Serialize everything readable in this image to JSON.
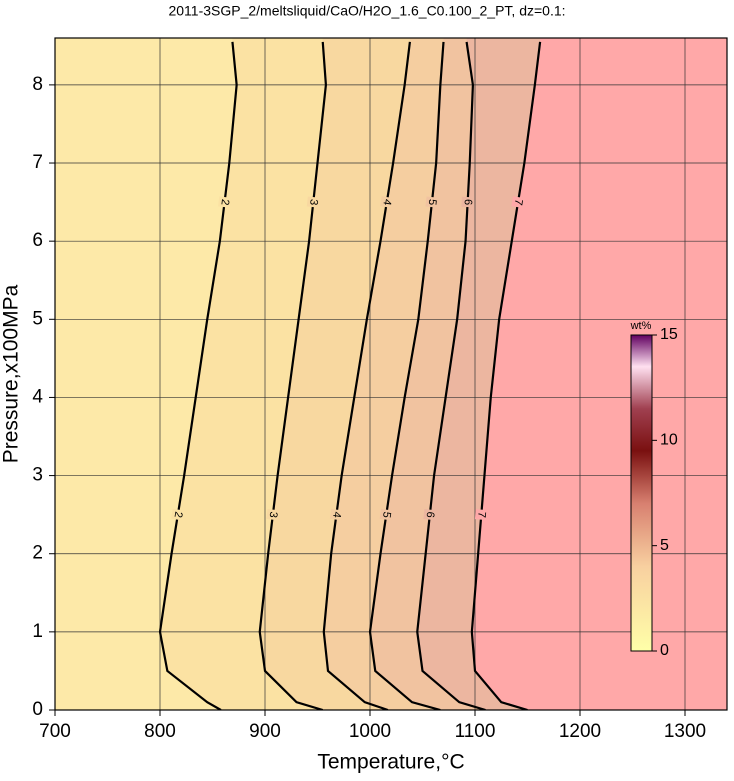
{
  "chart_data": {
    "type": "contour",
    "title": "2011-3SGP_2/meltsliquid/CaO/H2O_1.6_C0.100_2_PT, dz=0.1:",
    "x_label": "Temperature,°C",
    "y_label": "Pressure,x100MPa",
    "xlim": [
      700,
      1340
    ],
    "xticks": [
      700,
      800,
      900,
      1000,
      1100,
      1200,
      1300
    ],
    "ylim": [
      0,
      8.6
    ],
    "yticks": [
      0,
      1,
      2,
      3,
      4,
      5,
      6,
      7,
      8
    ],
    "grid": true,
    "background": "#fde9a8",
    "contours": [
      {
        "level": 2,
        "fill": "#fbe2a3",
        "y": [
          0,
          0.1,
          0.5,
          1,
          2,
          3,
          4,
          5,
          6,
          7,
          8,
          8.55
        ],
        "x": [
          858,
          845,
          807,
          800,
          811,
          823,
          834,
          845,
          857,
          866,
          873,
          869
        ]
      },
      {
        "level": 3,
        "fill": "#f8d8a0",
        "y": [
          0,
          0.1,
          0.5,
          1,
          2,
          3,
          4,
          5,
          6,
          7,
          8,
          8.55
        ],
        "x": [
          955,
          930,
          900,
          895,
          903,
          912,
          922,
          932,
          942,
          950,
          958,
          955
        ]
      },
      {
        "level": 4,
        "fill": "#f5cea0",
        "y": [
          0,
          0.1,
          0.5,
          1,
          2,
          3,
          4,
          5,
          6,
          7,
          8,
          8.55
        ],
        "x": [
          1017,
          995,
          960,
          956,
          963,
          973,
          985,
          997,
          1010,
          1022,
          1033,
          1038
        ]
      },
      {
        "level": 5,
        "fill": "#f1c3a0",
        "y": [
          0,
          0.1,
          0.5,
          1,
          2,
          3,
          4,
          5,
          6,
          7,
          8,
          8.55
        ],
        "x": [
          1067,
          1040,
          1005,
          1000,
          1010,
          1021,
          1033,
          1046,
          1055,
          1063,
          1067,
          1070
        ]
      },
      {
        "level": 6,
        "fill": "#ecb6a0",
        "y": [
          0,
          0.1,
          0.5,
          1,
          2,
          3,
          4,
          5,
          6,
          7,
          8,
          8.55
        ],
        "x": [
          1110,
          1085,
          1050,
          1045,
          1053,
          1061,
          1072,
          1083,
          1091,
          1095,
          1098,
          1092
        ]
      },
      {
        "level": 7,
        "fill": "#ffa8a8",
        "y": [
          0,
          0.1,
          0.5,
          1,
          2,
          3,
          4,
          5,
          6,
          7,
          8,
          8.55
        ],
        "x": [
          1150,
          1125,
          1100,
          1097,
          1103,
          1109,
          1115,
          1123,
          1135,
          1147,
          1157,
          1162
        ]
      }
    ],
    "colorbar": {
      "label": "wt%",
      "lim": [
        0,
        15
      ],
      "ticks": [
        0,
        5,
        10,
        15
      ],
      "colormap": [
        {
          "value": 0,
          "color": "#ffffa8"
        },
        {
          "value": 4,
          "color": "#f8d0a0"
        },
        {
          "value": 7,
          "color": "#d88070"
        },
        {
          "value": 9.5,
          "color": "#7a1010"
        },
        {
          "value": 11.5,
          "color": "#a04050"
        },
        {
          "value": 13.5,
          "color": "#ffe0f0"
        },
        {
          "value": 15,
          "color": "#600060"
        }
      ]
    }
  }
}
